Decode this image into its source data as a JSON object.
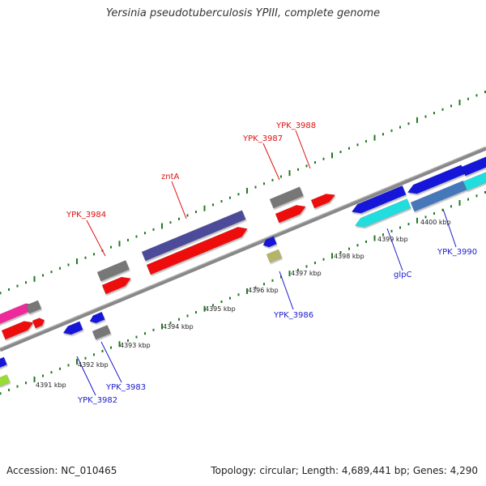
{
  "title": "Yersinia pseudotuberculosis YPIII, complete genome",
  "footer": {
    "accession": "Accession: NC_010465",
    "summary": "Topology: circular; Length: 4,689,441 bp; Genes: 4,290"
  },
  "colors": {
    "backbone": "#888888",
    "tick": "#1f7a1f",
    "top_label": "#dd1111",
    "bottom_label": "#1a1acc",
    "ruler_label": "#222222"
  },
  "ruler": {
    "labels": [
      "4391 kbp",
      "4392 kbp",
      "4393 kbp",
      "4394 kbp",
      "4395 kbp",
      "4396 kbp",
      "4397 kbp",
      "4398 kbp",
      "4399 kbp",
      "4400 kbp"
    ]
  },
  "gene_labels_top": [
    {
      "name": "YPK_3984",
      "color": "#dd1111"
    },
    {
      "name": "zntA",
      "color": "#dd1111"
    },
    {
      "name": "YPK_3987",
      "color": "#dd1111"
    },
    {
      "name": "YPK_3988",
      "color": "#dd1111"
    }
  ],
  "gene_labels_bottom": [
    {
      "name": "YPK_3982",
      "color": "#1a1acc"
    },
    {
      "name": "YPK_3983",
      "color": "#1a1acc"
    },
    {
      "name": "YPK_3986",
      "color": "#1a1acc"
    },
    {
      "name": "glpC",
      "color": "#1a1acc"
    },
    {
      "name": "YPK_3990",
      "color": "#1a1acc"
    }
  ]
}
